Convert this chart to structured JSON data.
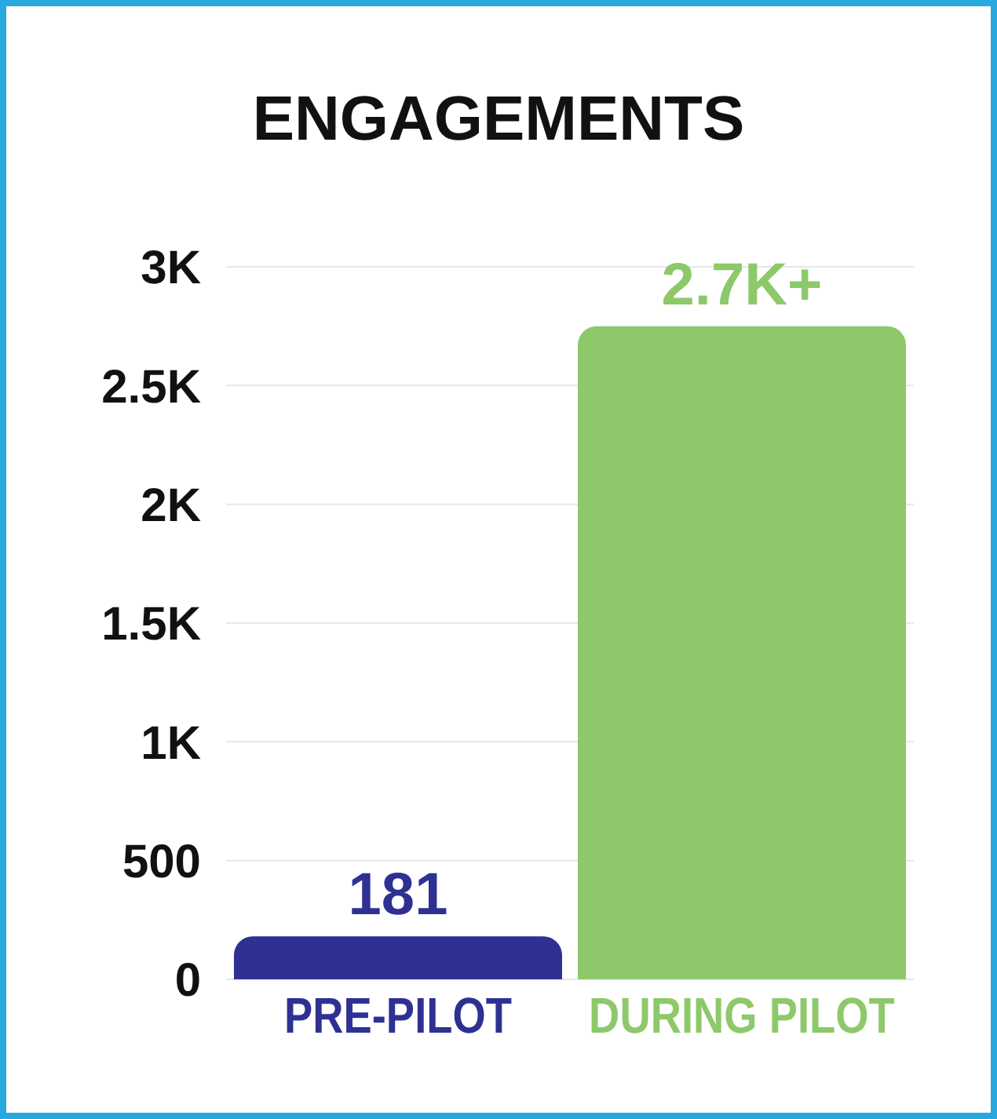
{
  "chart_data": {
    "type": "bar",
    "title": "ENGAGEMENTS",
    "categories": [
      "PRE-PILOT",
      "DURING PILOT"
    ],
    "values": [
      181,
      2750
    ],
    "colors": [
      "#2e3192",
      "#8dc96b"
    ],
    "value_labels": [
      "181",
      "2.7K+"
    ],
    "ylim": [
      0,
      3000
    ],
    "yticks": [
      {
        "value": 0,
        "label": "0"
      },
      {
        "value": 500,
        "label": "500"
      },
      {
        "value": 1000,
        "label": "1K"
      },
      {
        "value": 1500,
        "label": "1.5K"
      },
      {
        "value": 2000,
        "label": "2K"
      },
      {
        "value": 2500,
        "label": "2.5K"
      },
      {
        "value": 3000,
        "label": "3K"
      }
    ],
    "grid": "y",
    "legend": false
  }
}
